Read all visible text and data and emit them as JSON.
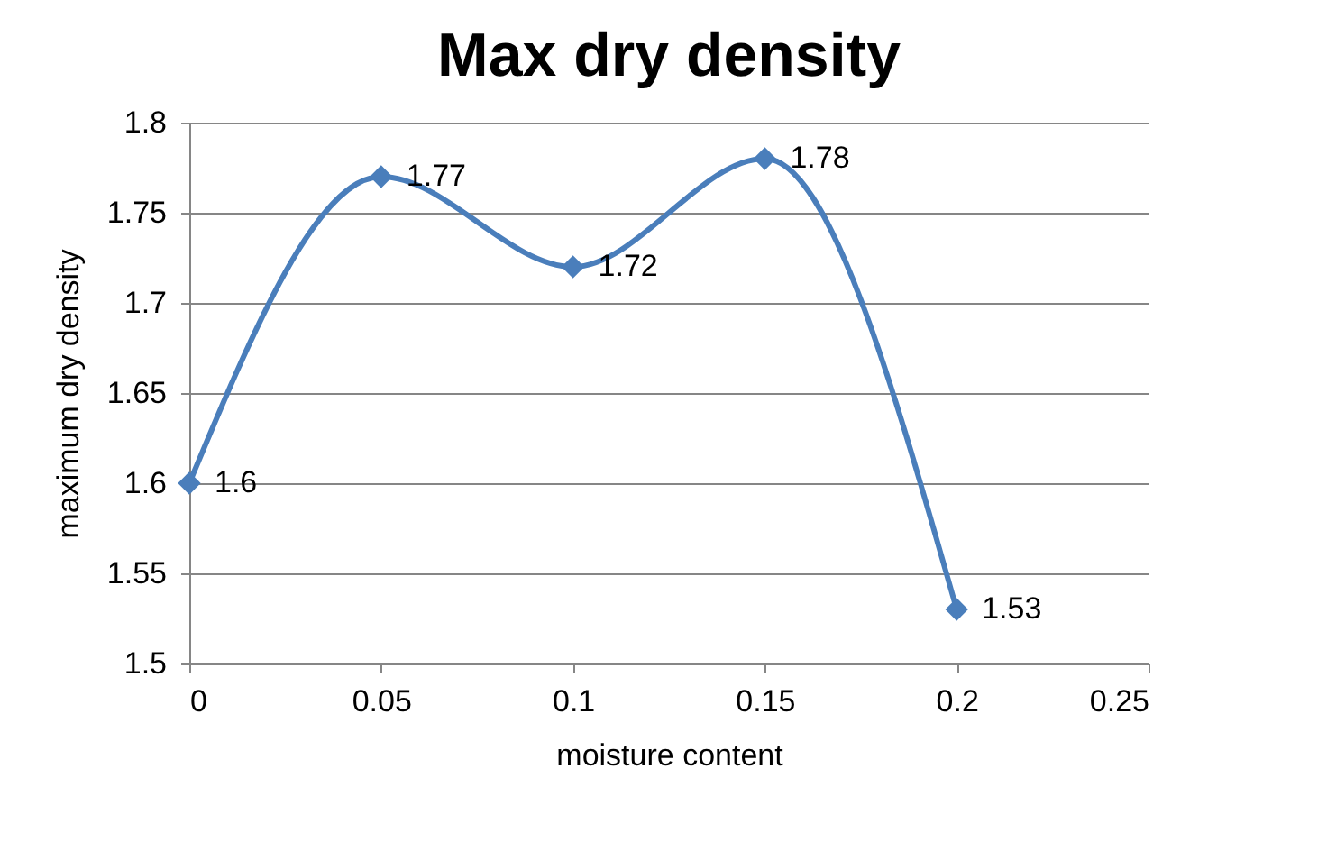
{
  "chart_data": {
    "type": "line",
    "title": "Max dry density",
    "xlabel": "moisture content",
    "ylabel": "maximum  dry density",
    "x": [
      0,
      0.05,
      0.1,
      0.15,
      0.2
    ],
    "series": [
      {
        "color": "#4a7ebb",
        "values": [
          1.6,
          1.77,
          1.72,
          1.78,
          1.53
        ]
      }
    ],
    "xlim": [
      0,
      0.25
    ],
    "xticks": [
      0,
      0.05,
      0.1,
      0.15,
      0.2,
      0.25
    ],
    "ylim": [
      1.5,
      1.8
    ],
    "yticks": [
      1.5,
      1.55,
      1.6,
      1.65,
      1.7,
      1.75,
      1.8
    ],
    "grid": "y",
    "marker": "diamond",
    "line_style": "solid",
    "data_labels": true
  }
}
